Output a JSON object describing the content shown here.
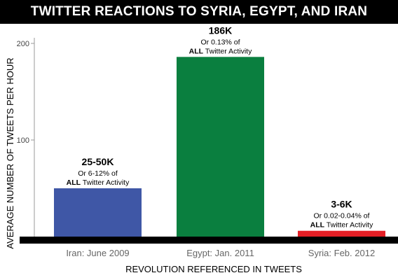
{
  "chart_data": {
    "type": "bar",
    "title": "TWITTER REACTIONS TO SYRIA, EGYPT, AND IRAN",
    "xlabel": "REVOLUTION REFERENCED IN TWEETS",
    "ylabel": "AVERAGE NUMBER OF TWEETS PER HOUR",
    "ylim": [
      0,
      200
    ],
    "yticks": [
      100,
      200
    ],
    "grid": false,
    "categories": [
      "Iran: June 2009",
      "Egypt: Jan. 2011",
      "Syria: Feb. 2012"
    ],
    "values": [
      50,
      186,
      6
    ],
    "colors": [
      "#3f57a6",
      "#0a7f3f",
      "#e41f26"
    ],
    "annotations": [
      {
        "headline": "25-50K",
        "line1": "Or 6-12% of",
        "line2_bold": "ALL",
        "line2_rest": " Twitter Activity"
      },
      {
        "headline": "186K",
        "line1": "Or 0.13% of",
        "line2_bold": "ALL",
        "line2_rest": " Twitter Activity"
      },
      {
        "headline": "3-6K",
        "line1": "Or 0.02-0.04% of",
        "line2_bold": "ALL",
        "line2_rest": " Twitter Activity"
      }
    ]
  }
}
